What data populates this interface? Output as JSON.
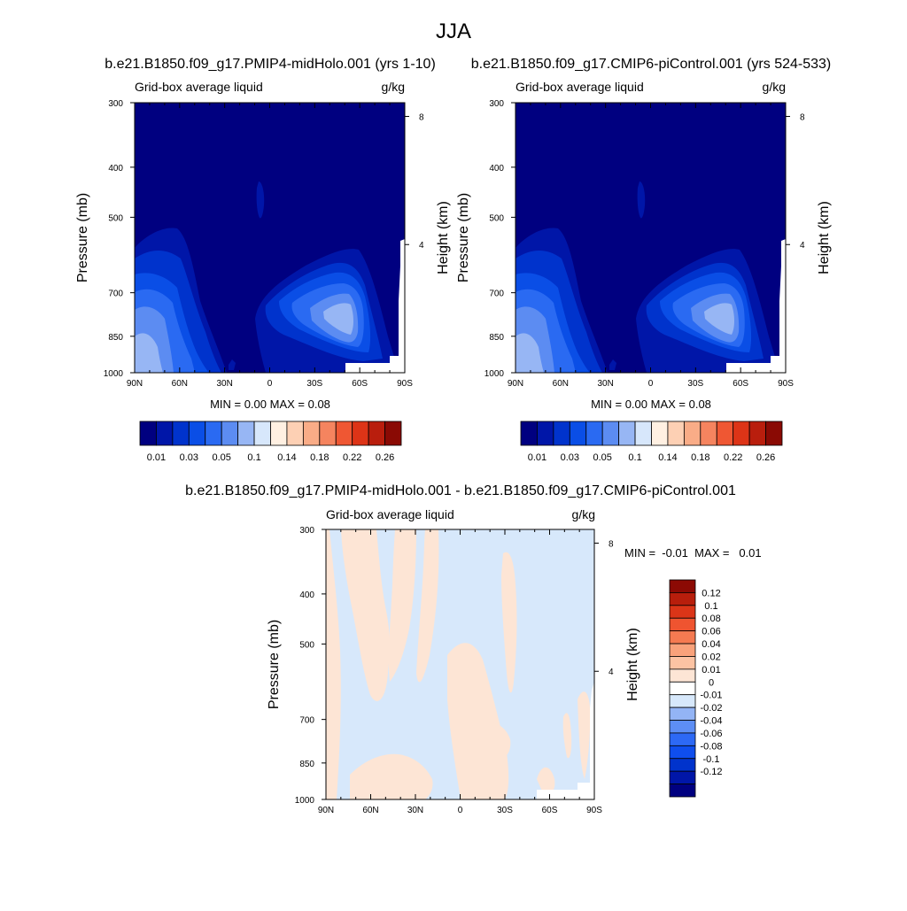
{
  "page": {
    "title": "JJA"
  },
  "colors": {
    "top_scale": [
      "#000080",
      "#0016a8",
      "#0033cc",
      "#0a4ee6",
      "#2a6af2",
      "#5c8cf2",
      "#97b6f4",
      "#d7e7fb",
      "#fff0e2",
      "#fdd0b4",
      "#f9ac87",
      "#f5845f",
      "#ef5733",
      "#dd3417",
      "#b91e0d",
      "#8a0a04"
    ],
    "diff_scale": [
      "#000080",
      "#0016a8",
      "#0033cc",
      "#0f4eed",
      "#2d69f5",
      "#5d8ef5",
      "#93b4f5",
      "#d7e8fb",
      "#ffffff",
      "#fde5d5",
      "#fcc3a3",
      "#f9a27b",
      "#f57a51",
      "#ef5430",
      "#db3518",
      "#b81e0c",
      "#8c0a04"
    ],
    "missing": "#ffffff"
  },
  "chart_data": [
    {
      "type": "heatmap",
      "name": "top-left",
      "title": "b.e21.B1850.f09_g17.PMIP4-midHolo.001 (yrs 1-10)",
      "left_string": "Grid-box average liquid",
      "right_string": "g/kg",
      "ylabel": "Pressure (mb)",
      "ylabel_right": "Height (km)",
      "x_ticks": [
        "90N",
        "60N",
        "30N",
        "0",
        "30S",
        "60S",
        "90S"
      ],
      "y_ticks": [
        "300",
        "400",
        "500",
        "700",
        "850",
        "1000"
      ],
      "y_ticks_right": [
        "8",
        "4"
      ],
      "stats": "MIN =   0.00  MAX =   0.08",
      "xlim": [
        90,
        -90
      ],
      "ylim": [
        1000,
        300
      ],
      "colorbar": {
        "levels": [
          0.01,
          0.02,
          0.03,
          0.04,
          0.05,
          0.06,
          0.1,
          0.12,
          0.14,
          0.16,
          0.18,
          0.2,
          0.22,
          0.24,
          0.26
        ],
        "labels": [
          "0.01",
          "0.03",
          "0.05",
          "0.1",
          "0.14",
          "0.18",
          "0.22",
          "0.26"
        ]
      }
    },
    {
      "type": "heatmap",
      "name": "top-right",
      "title": "b.e21.B1850.f09_g17.CMIP6-piControl.001 (yrs 524-533)",
      "left_string": "Grid-box average liquid",
      "right_string": "g/kg",
      "ylabel": "Pressure (mb)",
      "ylabel_right": "Height (km)",
      "x_ticks": [
        "90N",
        "60N",
        "30N",
        "0",
        "30S",
        "60S",
        "90S"
      ],
      "y_ticks": [
        "300",
        "400",
        "500",
        "700",
        "850",
        "1000"
      ],
      "y_ticks_right": [
        "8",
        "4"
      ],
      "stats": "MIN =   0.00  MAX =   0.08",
      "xlim": [
        90,
        -90
      ],
      "ylim": [
        1000,
        300
      ],
      "colorbar": {
        "levels": [
          0.01,
          0.02,
          0.03,
          0.04,
          0.05,
          0.06,
          0.1,
          0.12,
          0.14,
          0.16,
          0.18,
          0.2,
          0.22,
          0.24,
          0.26
        ],
        "labels": [
          "0.01",
          "0.03",
          "0.05",
          "0.1",
          "0.14",
          "0.18",
          "0.22",
          "0.26"
        ]
      }
    },
    {
      "type": "heatmap",
      "name": "difference",
      "title": "b.e21.B1850.f09_g17.PMIP4-midHolo.001 - b.e21.B1850.f09_g17.CMIP6-piControl.001",
      "left_string": "Grid-box average liquid",
      "right_string": "g/kg",
      "ylabel": "Pressure (mb)",
      "ylabel_right": "Height (km)",
      "x_ticks": [
        "90N",
        "60N",
        "30N",
        "0",
        "30S",
        "60S",
        "90S"
      ],
      "y_ticks": [
        "300",
        "400",
        "500",
        "700",
        "850",
        "1000"
      ],
      "y_ticks_right": [
        "8",
        "4"
      ],
      "stats": "MIN =  -0.01  MAX =   0.01",
      "xlim": [
        90,
        -90
      ],
      "ylim": [
        1000,
        300
      ],
      "colorbar": {
        "labels": [
          "0.12",
          "0.1",
          "0.08",
          "0.06",
          "0.04",
          "0.02",
          "0.01",
          "0",
          "-0.01",
          "-0.02",
          "-0.04",
          "-0.06",
          "-0.08",
          "-0.1",
          "-0.12"
        ]
      }
    }
  ]
}
